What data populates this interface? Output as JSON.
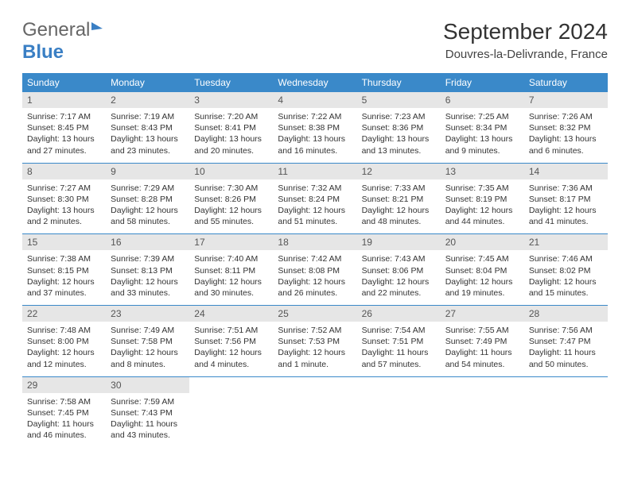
{
  "logo": {
    "line1": "General",
    "line2": "Blue"
  },
  "title": "September 2024",
  "location": "Douvres-la-Delivrande, France",
  "colors": {
    "header_bg": "#3a89c9",
    "header_text": "#ffffff",
    "daynum_bg": "#e6e6e6",
    "border": "#3a89c9",
    "logo_gray": "#666666",
    "logo_blue": "#3a7fc4"
  },
  "weekdays": [
    "Sunday",
    "Monday",
    "Tuesday",
    "Wednesday",
    "Thursday",
    "Friday",
    "Saturday"
  ],
  "weeks": [
    [
      {
        "n": "1",
        "sr": "Sunrise: 7:17 AM",
        "ss": "Sunset: 8:45 PM",
        "d1": "Daylight: 13 hours",
        "d2": "and 27 minutes."
      },
      {
        "n": "2",
        "sr": "Sunrise: 7:19 AM",
        "ss": "Sunset: 8:43 PM",
        "d1": "Daylight: 13 hours",
        "d2": "and 23 minutes."
      },
      {
        "n": "3",
        "sr": "Sunrise: 7:20 AM",
        "ss": "Sunset: 8:41 PM",
        "d1": "Daylight: 13 hours",
        "d2": "and 20 minutes."
      },
      {
        "n": "4",
        "sr": "Sunrise: 7:22 AM",
        "ss": "Sunset: 8:38 PM",
        "d1": "Daylight: 13 hours",
        "d2": "and 16 minutes."
      },
      {
        "n": "5",
        "sr": "Sunrise: 7:23 AM",
        "ss": "Sunset: 8:36 PM",
        "d1": "Daylight: 13 hours",
        "d2": "and 13 minutes."
      },
      {
        "n": "6",
        "sr": "Sunrise: 7:25 AM",
        "ss": "Sunset: 8:34 PM",
        "d1": "Daylight: 13 hours",
        "d2": "and 9 minutes."
      },
      {
        "n": "7",
        "sr": "Sunrise: 7:26 AM",
        "ss": "Sunset: 8:32 PM",
        "d1": "Daylight: 13 hours",
        "d2": "and 6 minutes."
      }
    ],
    [
      {
        "n": "8",
        "sr": "Sunrise: 7:27 AM",
        "ss": "Sunset: 8:30 PM",
        "d1": "Daylight: 13 hours",
        "d2": "and 2 minutes."
      },
      {
        "n": "9",
        "sr": "Sunrise: 7:29 AM",
        "ss": "Sunset: 8:28 PM",
        "d1": "Daylight: 12 hours",
        "d2": "and 58 minutes."
      },
      {
        "n": "10",
        "sr": "Sunrise: 7:30 AM",
        "ss": "Sunset: 8:26 PM",
        "d1": "Daylight: 12 hours",
        "d2": "and 55 minutes."
      },
      {
        "n": "11",
        "sr": "Sunrise: 7:32 AM",
        "ss": "Sunset: 8:24 PM",
        "d1": "Daylight: 12 hours",
        "d2": "and 51 minutes."
      },
      {
        "n": "12",
        "sr": "Sunrise: 7:33 AM",
        "ss": "Sunset: 8:21 PM",
        "d1": "Daylight: 12 hours",
        "d2": "and 48 minutes."
      },
      {
        "n": "13",
        "sr": "Sunrise: 7:35 AM",
        "ss": "Sunset: 8:19 PM",
        "d1": "Daylight: 12 hours",
        "d2": "and 44 minutes."
      },
      {
        "n": "14",
        "sr": "Sunrise: 7:36 AM",
        "ss": "Sunset: 8:17 PM",
        "d1": "Daylight: 12 hours",
        "d2": "and 41 minutes."
      }
    ],
    [
      {
        "n": "15",
        "sr": "Sunrise: 7:38 AM",
        "ss": "Sunset: 8:15 PM",
        "d1": "Daylight: 12 hours",
        "d2": "and 37 minutes."
      },
      {
        "n": "16",
        "sr": "Sunrise: 7:39 AM",
        "ss": "Sunset: 8:13 PM",
        "d1": "Daylight: 12 hours",
        "d2": "and 33 minutes."
      },
      {
        "n": "17",
        "sr": "Sunrise: 7:40 AM",
        "ss": "Sunset: 8:11 PM",
        "d1": "Daylight: 12 hours",
        "d2": "and 30 minutes."
      },
      {
        "n": "18",
        "sr": "Sunrise: 7:42 AM",
        "ss": "Sunset: 8:08 PM",
        "d1": "Daylight: 12 hours",
        "d2": "and 26 minutes."
      },
      {
        "n": "19",
        "sr": "Sunrise: 7:43 AM",
        "ss": "Sunset: 8:06 PM",
        "d1": "Daylight: 12 hours",
        "d2": "and 22 minutes."
      },
      {
        "n": "20",
        "sr": "Sunrise: 7:45 AM",
        "ss": "Sunset: 8:04 PM",
        "d1": "Daylight: 12 hours",
        "d2": "and 19 minutes."
      },
      {
        "n": "21",
        "sr": "Sunrise: 7:46 AM",
        "ss": "Sunset: 8:02 PM",
        "d1": "Daylight: 12 hours",
        "d2": "and 15 minutes."
      }
    ],
    [
      {
        "n": "22",
        "sr": "Sunrise: 7:48 AM",
        "ss": "Sunset: 8:00 PM",
        "d1": "Daylight: 12 hours",
        "d2": "and 12 minutes."
      },
      {
        "n": "23",
        "sr": "Sunrise: 7:49 AM",
        "ss": "Sunset: 7:58 PM",
        "d1": "Daylight: 12 hours",
        "d2": "and 8 minutes."
      },
      {
        "n": "24",
        "sr": "Sunrise: 7:51 AM",
        "ss": "Sunset: 7:56 PM",
        "d1": "Daylight: 12 hours",
        "d2": "and 4 minutes."
      },
      {
        "n": "25",
        "sr": "Sunrise: 7:52 AM",
        "ss": "Sunset: 7:53 PM",
        "d1": "Daylight: 12 hours",
        "d2": "and 1 minute."
      },
      {
        "n": "26",
        "sr": "Sunrise: 7:54 AM",
        "ss": "Sunset: 7:51 PM",
        "d1": "Daylight: 11 hours",
        "d2": "and 57 minutes."
      },
      {
        "n": "27",
        "sr": "Sunrise: 7:55 AM",
        "ss": "Sunset: 7:49 PM",
        "d1": "Daylight: 11 hours",
        "d2": "and 54 minutes."
      },
      {
        "n": "28",
        "sr": "Sunrise: 7:56 AM",
        "ss": "Sunset: 7:47 PM",
        "d1": "Daylight: 11 hours",
        "d2": "and 50 minutes."
      }
    ],
    [
      {
        "n": "29",
        "sr": "Sunrise: 7:58 AM",
        "ss": "Sunset: 7:45 PM",
        "d1": "Daylight: 11 hours",
        "d2": "and 46 minutes."
      },
      {
        "n": "30",
        "sr": "Sunrise: 7:59 AM",
        "ss": "Sunset: 7:43 PM",
        "d1": "Daylight: 11 hours",
        "d2": "and 43 minutes."
      },
      {
        "n": "",
        "sr": "",
        "ss": "",
        "d1": "",
        "d2": ""
      },
      {
        "n": "",
        "sr": "",
        "ss": "",
        "d1": "",
        "d2": ""
      },
      {
        "n": "",
        "sr": "",
        "ss": "",
        "d1": "",
        "d2": ""
      },
      {
        "n": "",
        "sr": "",
        "ss": "",
        "d1": "",
        "d2": ""
      },
      {
        "n": "",
        "sr": "",
        "ss": "",
        "d1": "",
        "d2": ""
      }
    ]
  ]
}
